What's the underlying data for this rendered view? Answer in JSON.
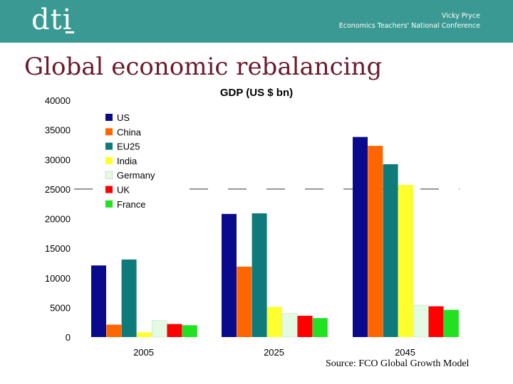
{
  "header": {
    "logo_text": "dti",
    "speaker_name": "Vicky Pryce",
    "event": "Economics Teachers' National Conference",
    "banner_color": "#3a9a93"
  },
  "slide": {
    "title": "Global economic rebalancing",
    "title_color": "#6b1a2c",
    "source": "Source: FCO Global Growth Model"
  },
  "chart_data": {
    "type": "bar",
    "title": "GDP (US $ bn)",
    "xlabel": "",
    "ylabel": "",
    "categories": [
      "2005",
      "2025",
      "2045"
    ],
    "ylim": [
      0,
      40000
    ],
    "yticks": [
      "0",
      "5000",
      "10000",
      "15000",
      "20000",
      "25000",
      "30000",
      "35000",
      "40000"
    ],
    "grid": false,
    "legend_position": "top-left",
    "reference_line": 25000,
    "series": [
      {
        "name": "US",
        "color": "#0a0a8c",
        "values": [
          12100,
          20800,
          33800
        ]
      },
      {
        "name": "China",
        "color": "#ff6600",
        "values": [
          2100,
          11900,
          32300
        ]
      },
      {
        "name": "EU25",
        "color": "#0f7a7a",
        "values": [
          13100,
          20900,
          29200
        ]
      },
      {
        "name": "India",
        "color": "#ffff2e",
        "values": [
          800,
          5100,
          25700
        ]
      },
      {
        "name": "Germany",
        "color": "#e3fbe3",
        "values": [
          2800,
          4000,
          5400
        ]
      },
      {
        "name": "UK",
        "color": "#ff0000",
        "values": [
          2200,
          3600,
          5200
        ]
      },
      {
        "name": "France",
        "color": "#22e022",
        "values": [
          2000,
          3200,
          4600
        ]
      }
    ]
  }
}
